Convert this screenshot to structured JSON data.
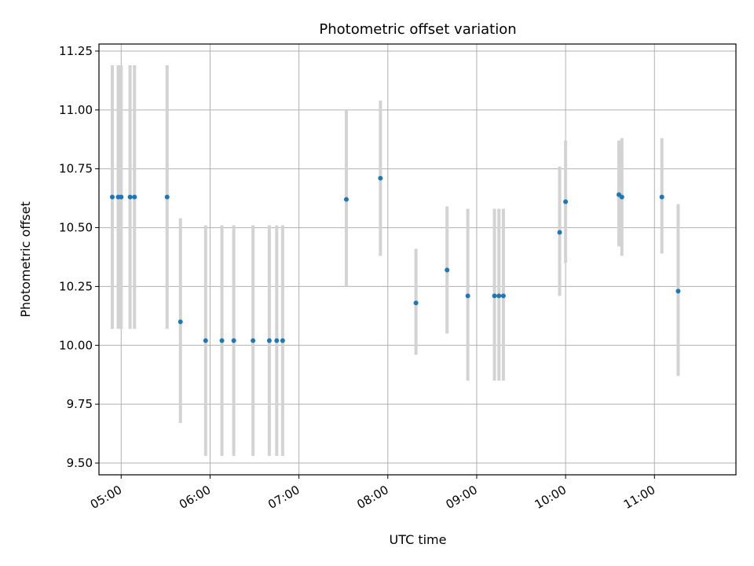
{
  "chart_data": {
    "type": "scatter",
    "title": "Photometric offset variation",
    "xlabel": "UTC time",
    "ylabel": "Photometric offset",
    "x_ticks": [
      "05:00",
      "06:00",
      "07:00",
      "08:00",
      "09:00",
      "10:00",
      "11:00"
    ],
    "y_ticks": [
      "9.50",
      "9.75",
      "10.00",
      "10.25",
      "10.50",
      "10.75",
      "11.00",
      "11.25"
    ],
    "xlim": [
      "04:45",
      "11:55"
    ],
    "ylim": [
      9.45,
      11.28
    ],
    "grid": true,
    "point_color": "#1f77b4",
    "errorbar_color": "#d3d3d3",
    "points": [
      {
        "t": "04:54",
        "y": 10.63,
        "lo": 10.07,
        "hi": 11.19
      },
      {
        "t": "04:58",
        "y": 10.63,
        "lo": 10.07,
        "hi": 11.19
      },
      {
        "t": "05:00",
        "y": 10.63,
        "lo": 10.07,
        "hi": 11.19
      },
      {
        "t": "05:06",
        "y": 10.63,
        "lo": 10.07,
        "hi": 11.19
      },
      {
        "t": "05:09",
        "y": 10.63,
        "lo": 10.07,
        "hi": 11.19
      },
      {
        "t": "05:31",
        "y": 10.63,
        "lo": 10.07,
        "hi": 11.19
      },
      {
        "t": "05:40",
        "y": 10.1,
        "lo": 9.67,
        "hi": 10.54
      },
      {
        "t": "05:57",
        "y": 10.02,
        "lo": 9.53,
        "hi": 10.51
      },
      {
        "t": "06:08",
        "y": 10.02,
        "lo": 9.53,
        "hi": 10.51
      },
      {
        "t": "06:16",
        "y": 10.02,
        "lo": 9.53,
        "hi": 10.51
      },
      {
        "t": "06:29",
        "y": 10.02,
        "lo": 9.53,
        "hi": 10.51
      },
      {
        "t": "06:40",
        "y": 10.02,
        "lo": 9.53,
        "hi": 10.51
      },
      {
        "t": "06:45",
        "y": 10.02,
        "lo": 9.53,
        "hi": 10.51
      },
      {
        "t": "06:49",
        "y": 10.02,
        "lo": 9.53,
        "hi": 10.51
      },
      {
        "t": "07:32",
        "y": 10.62,
        "lo": 10.25,
        "hi": 11.0
      },
      {
        "t": "07:55",
        "y": 10.71,
        "lo": 10.38,
        "hi": 11.04
      },
      {
        "t": "08:19",
        "y": 10.18,
        "lo": 9.96,
        "hi": 10.41
      },
      {
        "t": "08:40",
        "y": 10.32,
        "lo": 10.05,
        "hi": 10.59
      },
      {
        "t": "08:54",
        "y": 10.21,
        "lo": 9.85,
        "hi": 10.58
      },
      {
        "t": "09:12",
        "y": 10.21,
        "lo": 9.85,
        "hi": 10.58
      },
      {
        "t": "09:15",
        "y": 10.21,
        "lo": 9.85,
        "hi": 10.58
      },
      {
        "t": "09:18",
        "y": 10.21,
        "lo": 9.85,
        "hi": 10.58
      },
      {
        "t": "09:56",
        "y": 10.48,
        "lo": 10.21,
        "hi": 10.76
      },
      {
        "t": "10:00",
        "y": 10.61,
        "lo": 10.35,
        "hi": 10.87
      },
      {
        "t": "10:36",
        "y": 10.64,
        "lo": 10.42,
        "hi": 10.87
      },
      {
        "t": "10:38",
        "y": 10.63,
        "lo": 10.38,
        "hi": 10.88
      },
      {
        "t": "11:05",
        "y": 10.63,
        "lo": 10.39,
        "hi": 10.88
      },
      {
        "t": "11:16",
        "y": 10.23,
        "lo": 9.87,
        "hi": 10.6
      }
    ]
  }
}
